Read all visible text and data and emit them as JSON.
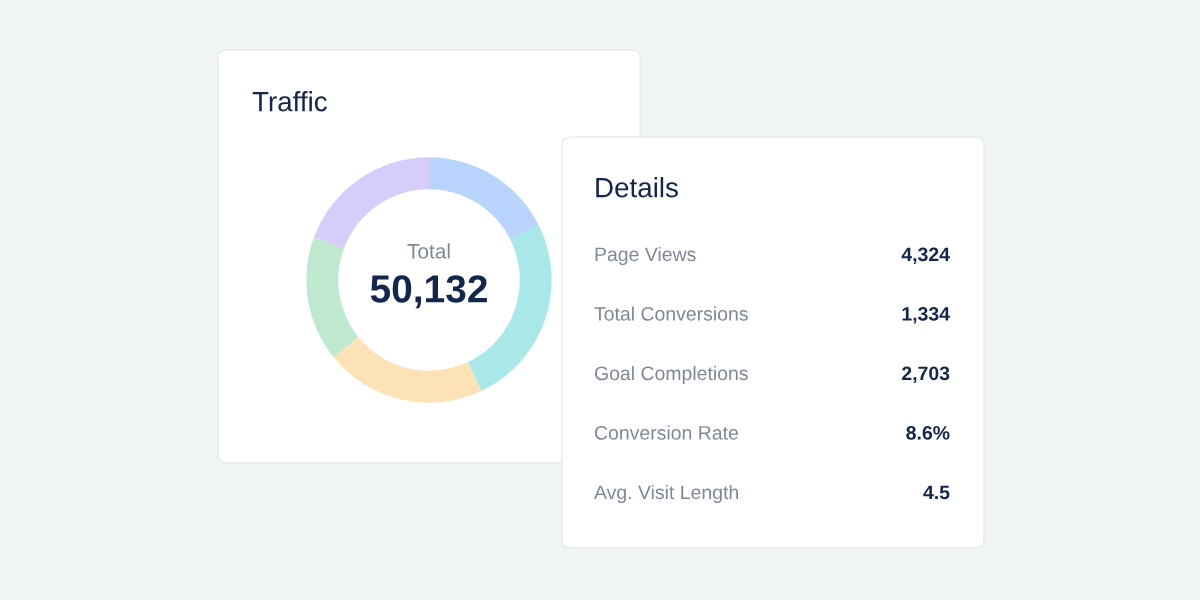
{
  "chart_data": [
    {
      "type": "donut",
      "title": "Traffic",
      "categories": [
        null,
        null,
        null,
        null,
        null
      ],
      "values": [
        17.6,
        25.4,
        21.2,
        16.5,
        19.3
      ],
      "colors": [
        "#b9d4fc",
        "#a8e8e8",
        "#fde2b6",
        "#bfe9cf",
        "#d7cdfa"
      ],
      "annotations": [
        "Total",
        "50,132"
      ]
    },
    {
      "type": "other",
      "title": "Details",
      "categories": [
        "Page Views",
        "Total Conversions",
        "Goal Completions",
        "Conversion Rate",
        "Avg. Visit Length"
      ],
      "value_labels": [
        "4,324",
        "1,334",
        "2,703",
        "8.6%",
        "4.5"
      ]
    }
  ]
}
